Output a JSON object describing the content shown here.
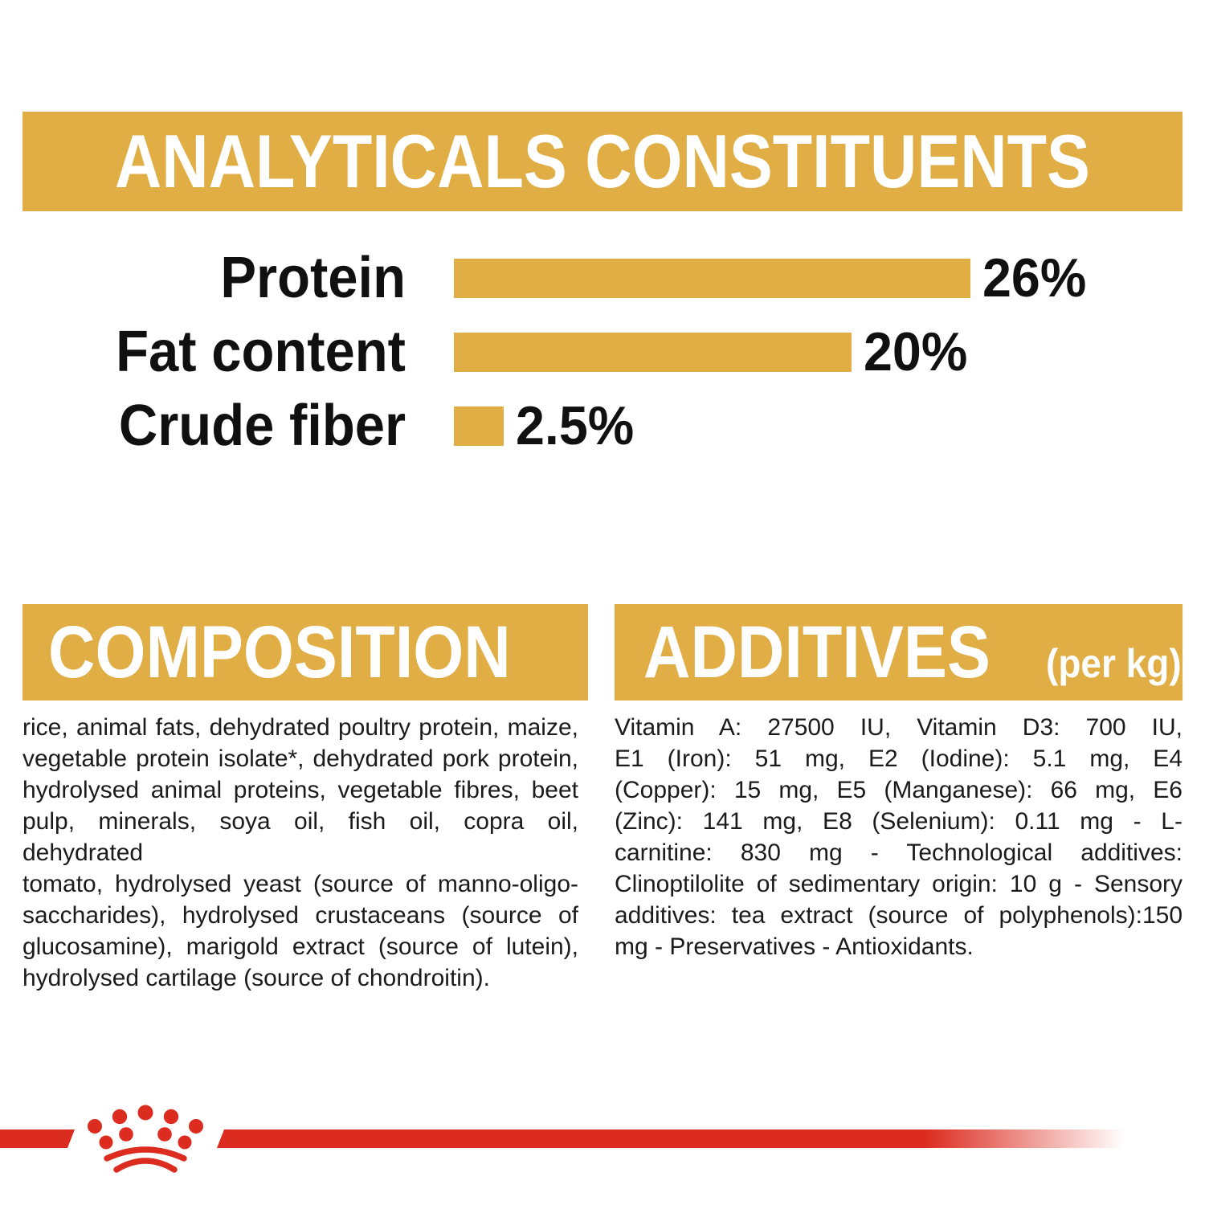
{
  "colors": {
    "gold": "#E0AE45",
    "red": "#DC2B1F",
    "text": "#1b1b1b",
    "banner_text": "#FFFFFF"
  },
  "header": {
    "title": "ANALYTICALS CONSTITUENTS"
  },
  "chart_data": {
    "type": "bar",
    "orientation": "horizontal",
    "categories": [
      "Protein",
      "Fat content",
      "Crude fiber"
    ],
    "values": [
      26,
      20,
      2.5
    ],
    "value_labels": [
      "26%",
      "20%",
      "2.5%"
    ],
    "title": "ANALYTICALS CONSTITUENTS",
    "xlabel": "",
    "ylabel": "",
    "xlim": [
      0,
      26
    ],
    "bar_color": "#E0AE45",
    "grid": false,
    "legend": false
  },
  "composition": {
    "title": "COMPOSITION",
    "lines": [
      "rice, animal fats, dehydrated poultry protein, maize,",
      "vegetable protein isolate*, dehydrated pork protein,",
      "hydrolysed animal proteins, vegetable fibres, beet",
      "pulp, minerals, soya oil, fish oil, copra oil, dehydrated",
      "tomato, hydrolysed yeast (source of manno-oligo-",
      "saccharides), hydrolysed crustaceans (source of",
      "glucosamine), marigold extract (source of lutein),",
      "hydrolysed cartilage (source of chondroitin)."
    ]
  },
  "additives": {
    "title": "ADDITIVES",
    "subtitle": "(per kg)",
    "lines": [
      "Vitamin A: 27500 IU, Vitamin D3: 700 IU,",
      "E1 (Iron): 51 mg, E2 (Iodine): 5.1 mg, E4",
      "(Copper): 15 mg, E5 (Manganese): 66 mg, E6",
      "(Zinc): 141 mg, E8 (Selenium): 0.11 mg - L-",
      "carnitine: 830 mg - Technological additives:",
      "Clinoptilolite of sedimentary origin: 10 g - Sensory",
      "additives: tea extract (source of polyphenols):150",
      "mg - Preservatives - Antioxidants."
    ]
  },
  "footer": {
    "logo_icon": "royal-canin-crown-icon",
    "divider_color": "#DC2B1F"
  }
}
